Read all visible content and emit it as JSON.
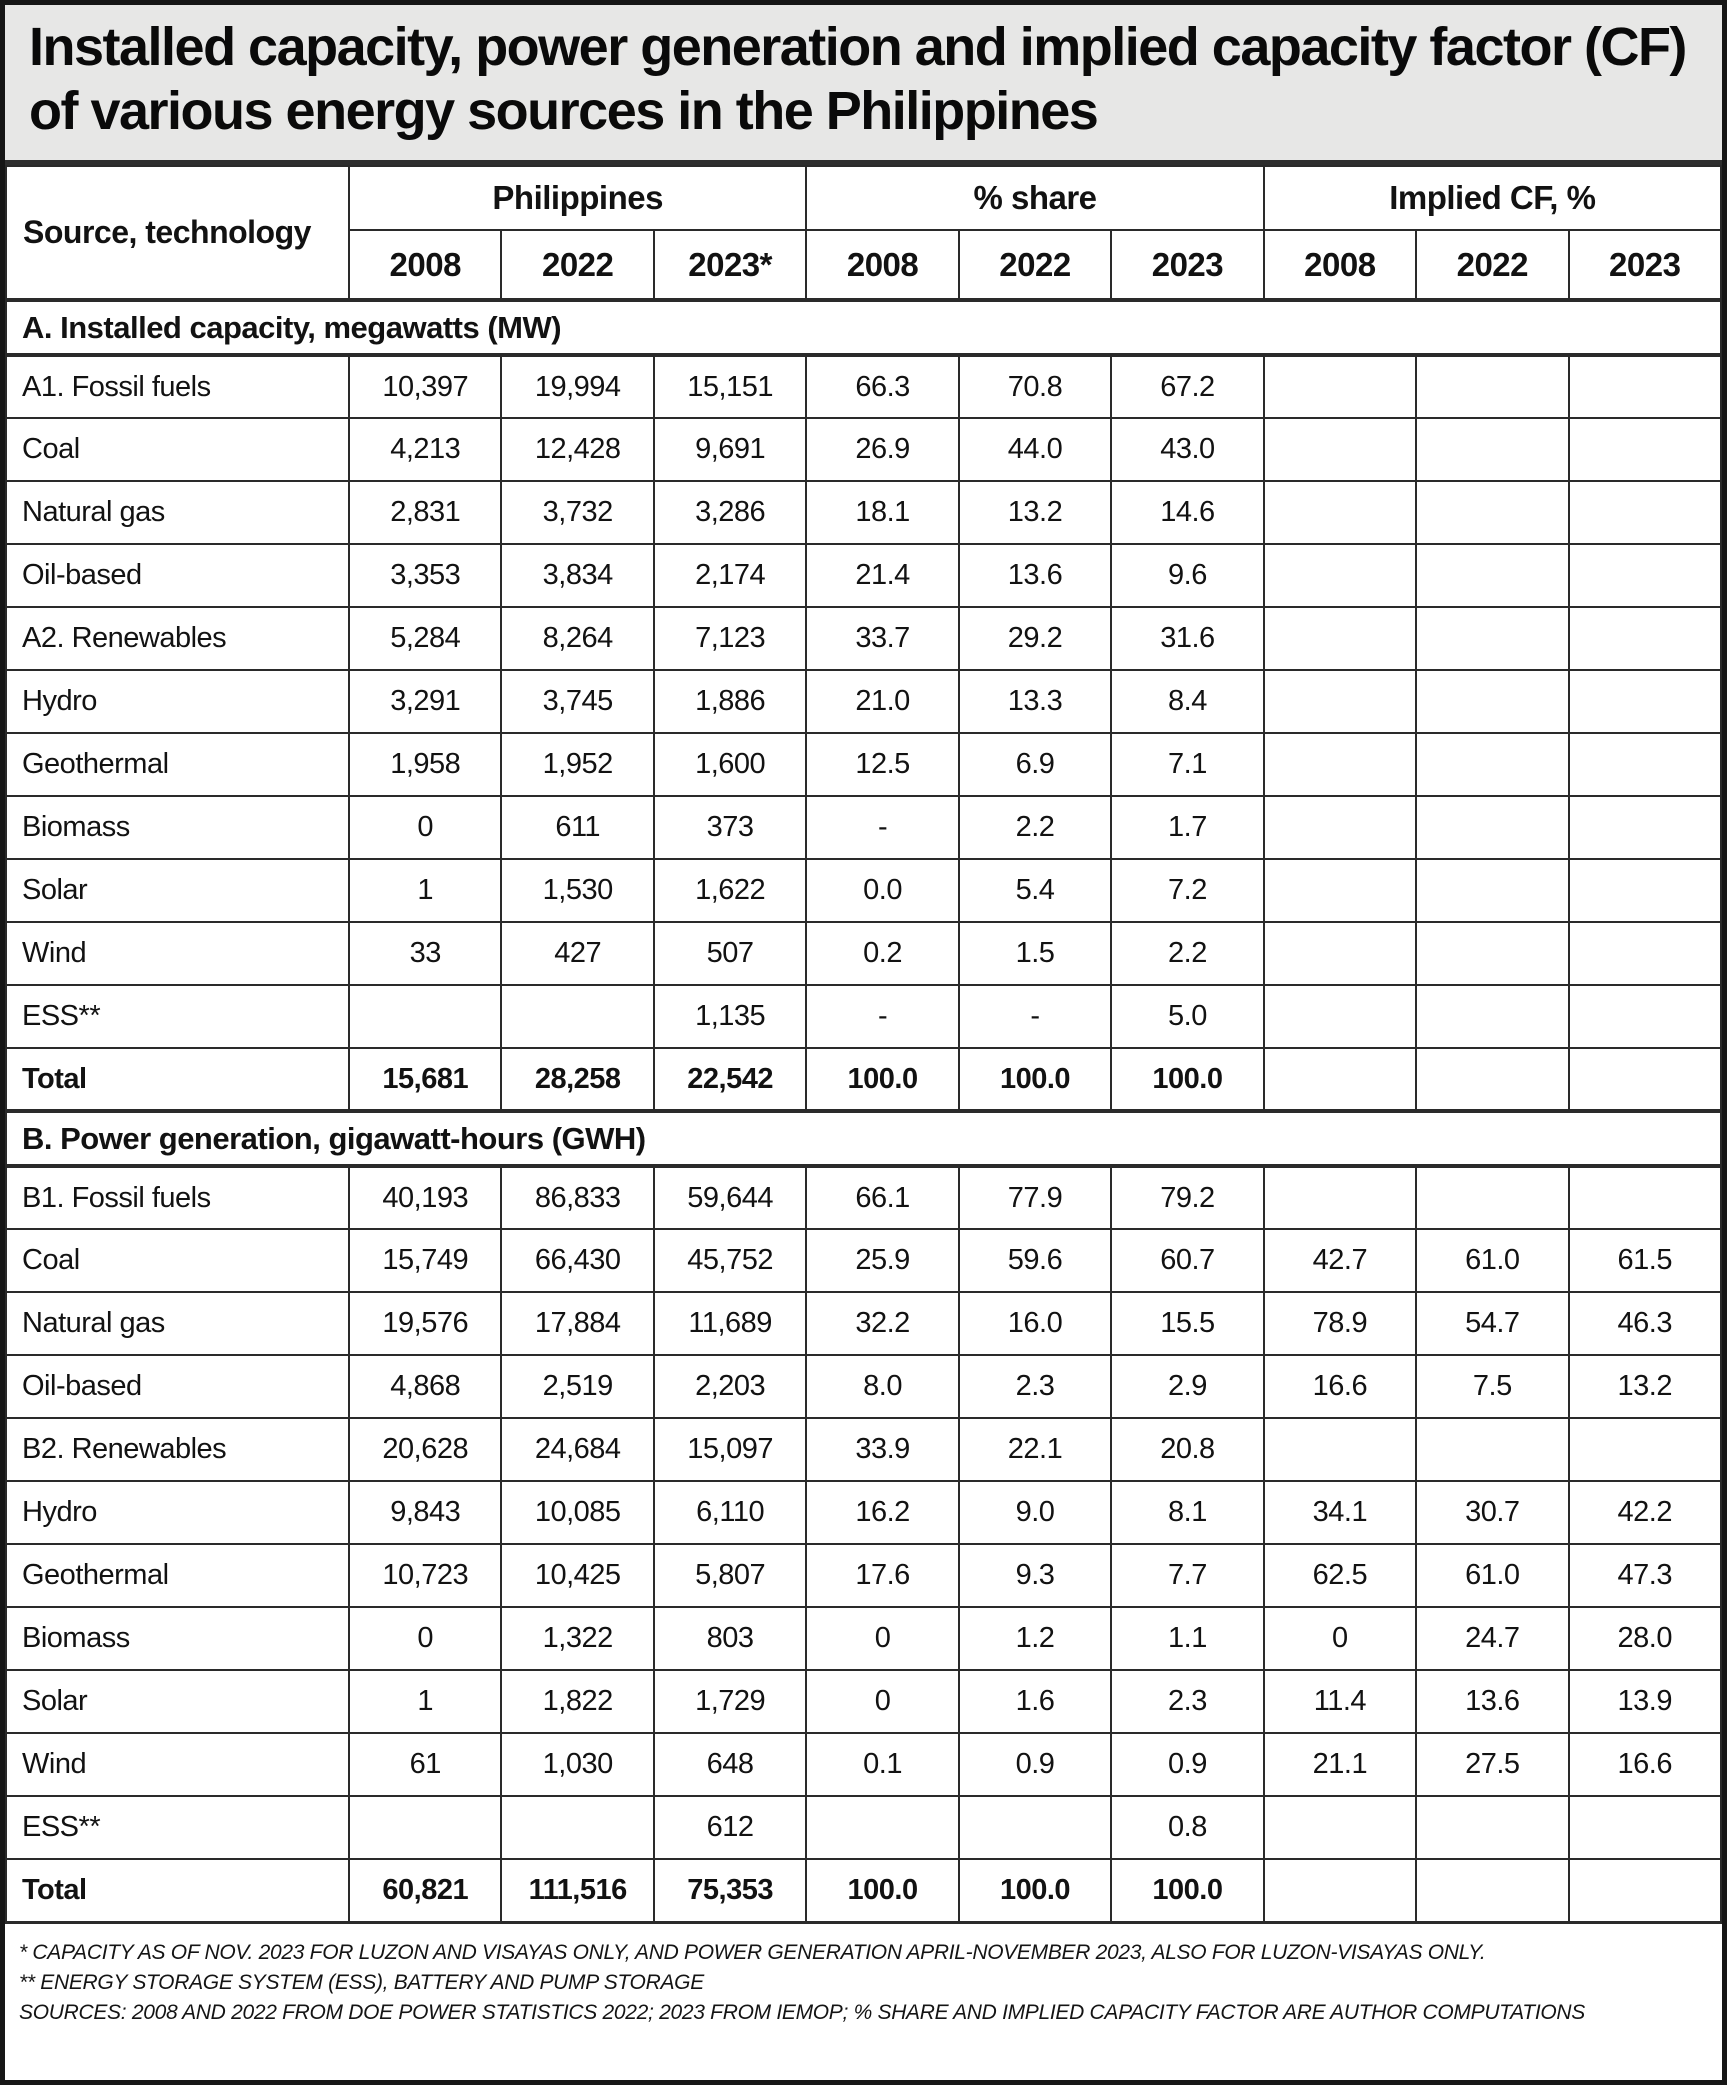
{
  "colors": {
    "title_background": "#e7e7e6",
    "border": "#2a2a2a",
    "text": "#121212"
  },
  "chart_data": {
    "type": "table",
    "title": "Installed capacity, power generation and implied capacity factor (CF) of various energy sources in the Philippines",
    "col_groups": [
      {
        "label": "Source, technology",
        "years": []
      },
      {
        "label": "Philippines",
        "years": [
          "2008",
          "2022",
          "2023*"
        ]
      },
      {
        "label": "% share",
        "years": [
          "2008",
          "2022",
          "2023"
        ]
      },
      {
        "label": "Implied CF, %",
        "years": [
          "2008",
          "2022",
          "2023"
        ]
      }
    ],
    "sections": [
      {
        "header": "A. Installed capacity, megawatts (MW)",
        "rows": [
          {
            "label": "A1. Fossil fuels",
            "bold": false,
            "values": [
              "10,397",
              "19,994",
              "15,151",
              "66.3",
              "70.8",
              "67.2",
              "",
              "",
              ""
            ]
          },
          {
            "label": "Coal",
            "bold": false,
            "values": [
              "4,213",
              "12,428",
              "9,691",
              "26.9",
              "44.0",
              "43.0",
              "",
              "",
              ""
            ]
          },
          {
            "label": "Natural gas",
            "bold": false,
            "values": [
              "2,831",
              "3,732",
              "3,286",
              "18.1",
              "13.2",
              "14.6",
              "",
              "",
              ""
            ]
          },
          {
            "label": "Oil-based",
            "bold": false,
            "values": [
              "3,353",
              "3,834",
              "2,174",
              "21.4",
              "13.6",
              "9.6",
              "",
              "",
              ""
            ]
          },
          {
            "label": "A2. Renewables",
            "bold": false,
            "values": [
              "5,284",
              "8,264",
              "7,123",
              "33.7",
              "29.2",
              "31.6",
              "",
              "",
              ""
            ]
          },
          {
            "label": "Hydro",
            "bold": false,
            "values": [
              "3,291",
              "3,745",
              "1,886",
              "21.0",
              "13.3",
              "8.4",
              "",
              "",
              ""
            ]
          },
          {
            "label": "Geothermal",
            "bold": false,
            "values": [
              "1,958",
              "1,952",
              "1,600",
              "12.5",
              "6.9",
              "7.1",
              "",
              "",
              ""
            ]
          },
          {
            "label": "Biomass",
            "bold": false,
            "values": [
              "0",
              "611",
              "373",
              "-",
              "2.2",
              "1.7",
              "",
              "",
              ""
            ]
          },
          {
            "label": "Solar",
            "bold": false,
            "values": [
              "1",
              "1,530",
              "1,622",
              "0.0",
              "5.4",
              "7.2",
              "",
              "",
              ""
            ]
          },
          {
            "label": "Wind",
            "bold": false,
            "values": [
              "33",
              "427",
              "507",
              "0.2",
              "1.5",
              "2.2",
              "",
              "",
              ""
            ]
          },
          {
            "label": "ESS**",
            "bold": false,
            "values": [
              "",
              "",
              "1,135",
              "-",
              "-",
              "5.0",
              "",
              "",
              ""
            ]
          },
          {
            "label": "Total",
            "bold": true,
            "values": [
              "15,681",
              "28,258",
              "22,542",
              "100.0",
              "100.0",
              "100.0",
              "",
              "",
              ""
            ]
          }
        ]
      },
      {
        "header": "B. Power generation, gigawatt-hours (GWH)",
        "rows": [
          {
            "label": "B1. Fossil fuels",
            "bold": false,
            "values": [
              "40,193",
              "86,833",
              "59,644",
              "66.1",
              "77.9",
              "79.2",
              "",
              "",
              ""
            ]
          },
          {
            "label": "Coal",
            "bold": false,
            "values": [
              "15,749",
              "66,430",
              "45,752",
              "25.9",
              "59.6",
              "60.7",
              "42.7",
              "61.0",
              "61.5"
            ]
          },
          {
            "label": "Natural gas",
            "bold": false,
            "values": [
              "19,576",
              "17,884",
              "11,689",
              "32.2",
              "16.0",
              "15.5",
              "78.9",
              "54.7",
              "46.3"
            ]
          },
          {
            "label": "Oil-based",
            "bold": false,
            "values": [
              "4,868",
              "2,519",
              "2,203",
              "8.0",
              "2.3",
              "2.9",
              "16.6",
              "7.5",
              "13.2"
            ]
          },
          {
            "label": "B2. Renewables",
            "bold": false,
            "values": [
              "20,628",
              "24,684",
              "15,097",
              "33.9",
              "22.1",
              "20.8",
              "",
              "",
              ""
            ]
          },
          {
            "label": "Hydro",
            "bold": false,
            "values": [
              "9,843",
              "10,085",
              "6,110",
              "16.2",
              "9.0",
              "8.1",
              "34.1",
              "30.7",
              "42.2"
            ]
          },
          {
            "label": "Geothermal",
            "bold": false,
            "values": [
              "10,723",
              "10,425",
              "5,807",
              "17.6",
              "9.3",
              "7.7",
              "62.5",
              "61.0",
              "47.3"
            ]
          },
          {
            "label": "Biomass",
            "bold": false,
            "values": [
              "0",
              "1,322",
              "803",
              "0",
              "1.2",
              "1.1",
              "0",
              "24.7",
              "28.0"
            ]
          },
          {
            "label": "Solar",
            "bold": false,
            "values": [
              "1",
              "1,822",
              "1,729",
              "0",
              "1.6",
              "2.3",
              "11.4",
              "13.6",
              "13.9"
            ]
          },
          {
            "label": "Wind",
            "bold": false,
            "values": [
              "61",
              "1,030",
              "648",
              "0.1",
              "0.9",
              "0.9",
              "21.1",
              "27.5",
              "16.6"
            ]
          },
          {
            "label": "ESS**",
            "bold": false,
            "values": [
              "",
              "",
              "612",
              "",
              "",
              "0.8",
              "",
              "",
              ""
            ]
          },
          {
            "label": "Total",
            "bold": true,
            "values": [
              "60,821",
              "111,516",
              "75,353",
              "100.0",
              "100.0",
              "100.0",
              "",
              "",
              ""
            ]
          }
        ]
      }
    ],
    "footnotes": [
      "* CAPACITY AS OF NOV. 2023 FOR LUZON AND VISAYAS ONLY, AND POWER GENERATION APRIL-NOVEMBER 2023, ALSO FOR LUZON-VISAYAS ONLY.",
      "** ENERGY STORAGE SYSTEM (ESS), BATTERY AND PUMP STORAGE",
      "SOURCES: 2008 AND 2022 FROM DOE POWER STATISTICS 2022; 2023 FROM IEMOP; % SHARE AND IMPLIED CAPACITY FACTOR ARE AUTHOR COMPUTATIONS"
    ]
  }
}
